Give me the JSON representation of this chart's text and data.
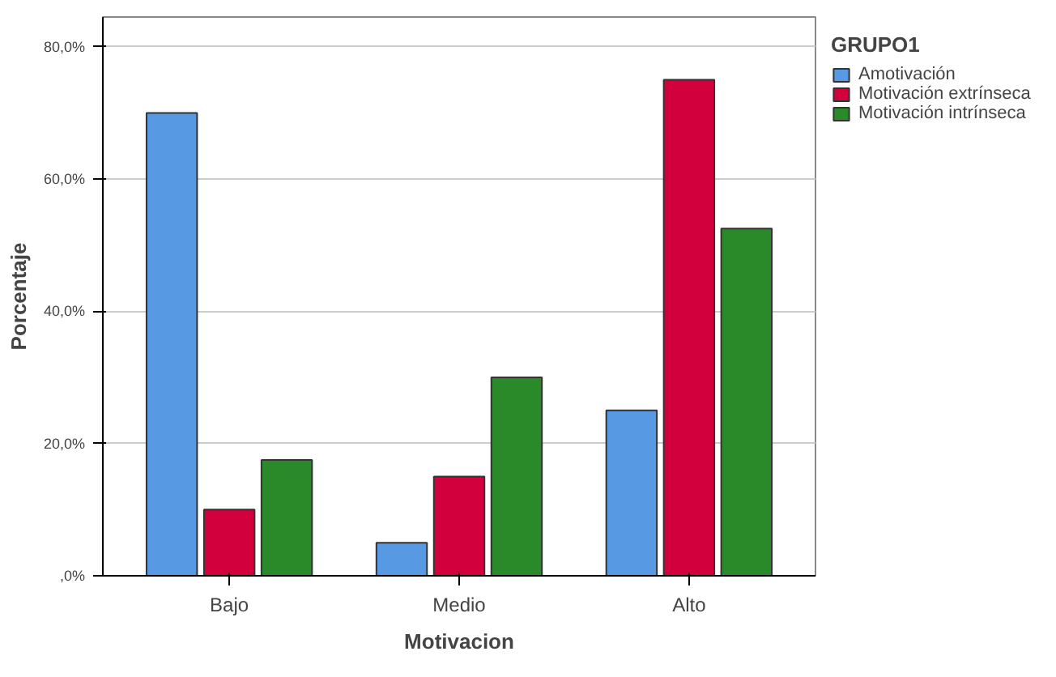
{
  "chart_data": {
    "type": "bar",
    "xlabel": "Motivacion",
    "ylabel": "Porcentaje",
    "legend_title": "GRUPO1",
    "legend": "top right",
    "grid": "y",
    "categories": [
      "Bajo",
      "Medio",
      "Alto"
    ],
    "series": [
      {
        "name": "Amotivación",
        "color": "#5799e3",
        "values": [
          70,
          5,
          25
        ]
      },
      {
        "name": "Motivación extrínseca",
        "color": "#d2003c",
        "values": [
          10,
          15,
          75
        ]
      },
      {
        "name": "Motivación intrínseca",
        "color": "#2a8a2a",
        "values": [
          17.5,
          30,
          52.5
        ]
      }
    ],
    "ylim": [
      0,
      84.5
    ],
    "yticks": [
      {
        "value": 0,
        "label": ",0%"
      },
      {
        "value": 20,
        "label": "20,0%"
      },
      {
        "value": 40,
        "label": "40,0%"
      },
      {
        "value": 60,
        "label": "60,0%"
      },
      {
        "value": 80,
        "label": "80,0%"
      }
    ]
  }
}
